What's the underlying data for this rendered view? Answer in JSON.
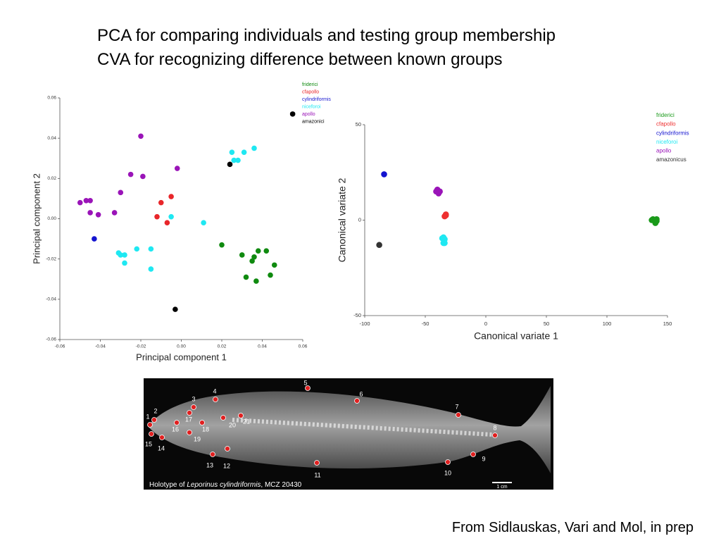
{
  "slide": {
    "title_lines": [
      "PCA for comparing individuals and testing group membership",
      "CVA for recognizing difference between known groups"
    ],
    "credit": "From Sidlauskas, Vari and Mol, in prep"
  },
  "image": {
    "caption": [
      "Holotype of ",
      "Leporinus cylindriformis",
      ", MCZ 20430"
    ],
    "scale_label": "1 cm",
    "landmarks": [
      "1",
      "2",
      "3",
      "4",
      "5",
      "6",
      "7",
      "8",
      "9",
      "10",
      "11",
      "12",
      "13",
      "14",
      "15",
      "16",
      "17",
      "18",
      "19",
      "20",
      "21"
    ]
  },
  "chart_data": [
    {
      "type": "scatter",
      "x_label": "Principal component 1",
      "y_label": "Principal component 2",
      "xlim": [
        -0.06,
        0.06
      ],
      "ylim": [
        -0.06,
        0.06
      ],
      "xticks": [
        -0.06,
        -0.04,
        -0.02,
        {
          "value": 0,
          "label": "0.00"
        },
        0.02,
        0.04,
        0.06
      ],
      "yticks": [
        -0.06,
        -0.04,
        -0.02,
        {
          "value": 0,
          "label": "0.00"
        },
        0.02,
        0.04,
        0.06
      ],
      "series": [
        {
          "name": "friderici",
          "color": "#0f8a0f",
          "x": [
            0.02,
            0.03,
            0.036,
            0.035,
            0.038,
            0.042,
            0.046,
            0.032,
            0.037,
            0.044
          ],
          "y": [
            -0.013,
            -0.018,
            -0.019,
            -0.021,
            -0.016,
            -0.016,
            -0.023,
            -0.029,
            -0.031,
            -0.028
          ]
        },
        {
          "name": "cfapollo",
          "color": "#e8262a",
          "x": [
            -0.005,
            -0.01,
            -0.012,
            -0.007
          ],
          "y": [
            0.011,
            0.008,
            0.001,
            -0.002
          ]
        },
        {
          "name": "cylindriformis",
          "color": "#1414d0",
          "x": [
            -0.043
          ],
          "y": [
            -0.01
          ]
        },
        {
          "name": "niceforoi",
          "color": "#1fe8f2",
          "x": [
            0.025,
            0.026,
            0.028,
            0.031,
            0.036,
            0.011,
            -0.005,
            -0.031,
            -0.03,
            -0.028,
            -0.028,
            -0.022,
            -0.015,
            -0.015
          ],
          "y": [
            0.033,
            0.029,
            0.029,
            0.033,
            0.035,
            -0.002,
            0.001,
            -0.017,
            -0.018,
            -0.018,
            -0.022,
            -0.015,
            -0.015,
            -0.025
          ]
        },
        {
          "name": "apollo",
          "color": "#9a14b8",
          "x": [
            -0.02,
            -0.025,
            -0.019,
            -0.002,
            -0.03,
            -0.05,
            -0.047,
            -0.045,
            -0.045,
            -0.041,
            -0.033
          ],
          "y": [
            0.041,
            0.022,
            0.021,
            0.025,
            0.013,
            0.008,
            0.009,
            0.009,
            0.003,
            0.002,
            0.003
          ]
        },
        {
          "name": "amazonici",
          "color": "#000000",
          "x": [
            0.024,
            -0.003,
            0.055
          ],
          "y": [
            0.027,
            -0.045,
            0.052
          ]
        }
      ]
    },
    {
      "type": "scatter",
      "x_label": "Canonical variate 1",
      "y_label": "Canonical variate 2",
      "xlim": [
        -100,
        150
      ],
      "ylim": [
        -50,
        50
      ],
      "xticks": [
        -100,
        -50,
        0,
        50,
        100,
        150
      ],
      "yticks": [
        -50,
        0,
        50
      ],
      "series": [
        {
          "name": "friderici",
          "color": "#1a9a1a",
          "x": [
            138,
            141,
            140,
            137,
            141
          ],
          "y": [
            0.5,
            -0.5,
            -1.5,
            0,
            0.5
          ]
        },
        {
          "name": "cfapollo",
          "color": "#ee3030",
          "x": [
            -33,
            -34,
            -33
          ],
          "y": [
            3,
            2,
            2.5
          ]
        },
        {
          "name": "cylindriformis",
          "color": "#1414d0",
          "x": [
            -84
          ],
          "y": [
            24
          ]
        },
        {
          "name": "niceforoi",
          "color": "#1fe8f2",
          "x": [
            -35,
            -34,
            -35,
            -34,
            -36
          ],
          "y": [
            -9,
            -10,
            -12,
            -12,
            -9.5
          ]
        },
        {
          "name": "apollo",
          "color": "#9a14b8",
          "x": [
            -40,
            -39,
            -38,
            -41
          ],
          "y": [
            16,
            14,
            15,
            15
          ]
        },
        {
          "name": "amazonicus",
          "color": "#333333",
          "x": [
            -88
          ],
          "y": [
            -13
          ]
        }
      ]
    }
  ]
}
